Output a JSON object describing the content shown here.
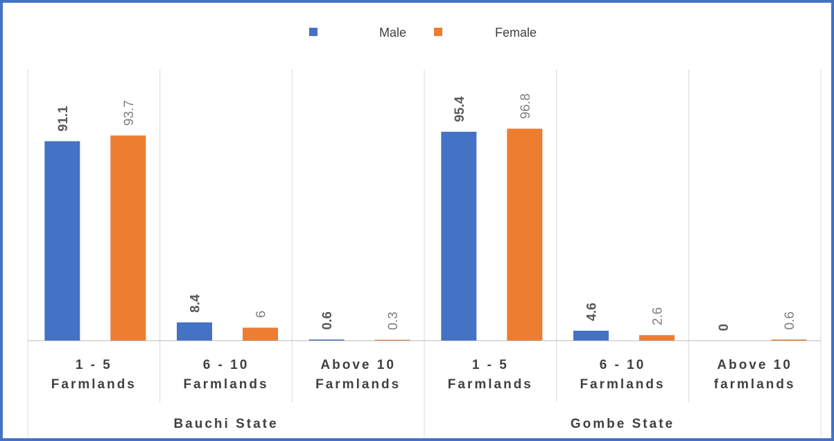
{
  "chart_data": {
    "type": "bar",
    "groups": [
      {
        "label": "Bauchi State",
        "categories": [
          "1 - 5 Farmlands",
          "6 - 10 Farmlands",
          "Above 10 Farmlands"
        ]
      },
      {
        "label": "Gombe State",
        "categories": [
          "1 - 5 Farmlands",
          "6 - 10 Farmlands",
          "Above 10 farmlands"
        ]
      }
    ],
    "category_lines": [
      [
        "1 - 5",
        "Farmlands"
      ],
      [
        "6 - 10",
        "Farmlands"
      ],
      [
        "Above 10",
        "Farmlands"
      ],
      [
        "1 - 5",
        "Farmlands"
      ],
      [
        "6 - 10",
        "Farmlands"
      ],
      [
        "Above 10",
        "farmlands"
      ]
    ],
    "series": [
      {
        "name": "Male",
        "color": "#4472C4",
        "values": [
          91.1,
          8.4,
          0.6,
          95.4,
          4.6,
          0
        ],
        "labels": [
          "91.1",
          "8.4",
          "0.6",
          "95.4",
          "4.6",
          "0"
        ]
      },
      {
        "name": "Female",
        "color": "#ED7D31",
        "values": [
          93.7,
          6,
          0.3,
          96.8,
          2.6,
          0.6
        ],
        "labels": [
          "93.7",
          "6",
          "0.3",
          "96.8",
          "2.6",
          "0.6"
        ]
      }
    ],
    "ylim": [
      0,
      100
    ],
    "legend": "top-center",
    "grid": false
  }
}
